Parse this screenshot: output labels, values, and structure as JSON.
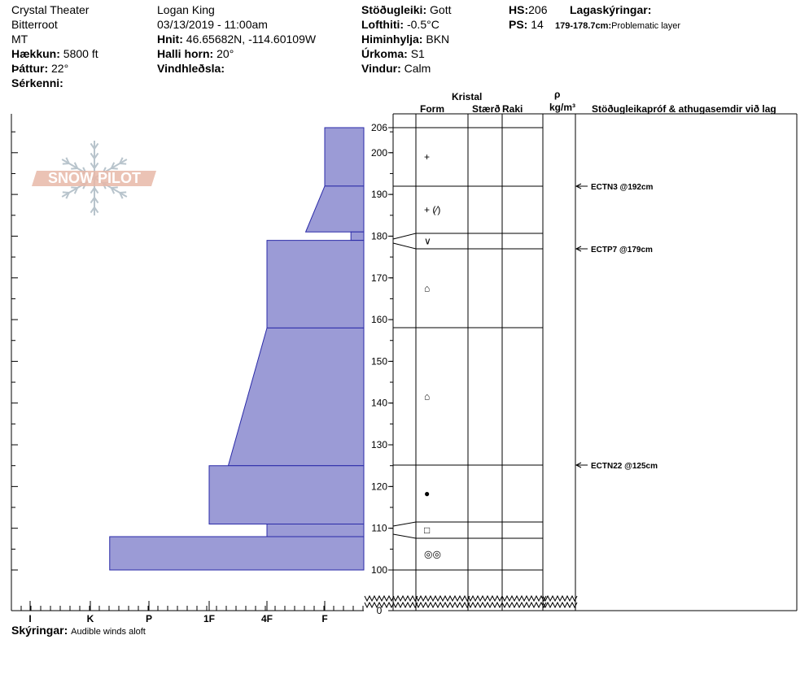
{
  "site": {
    "location": "Crystal Theater",
    "range": "Bitterroot",
    "state": "MT",
    "elevation_label": "Hækkun:",
    "elevation_value": "5800 ft",
    "aspect_label": "Þáttur:",
    "aspect_value": "22°",
    "features_label": "Sérkenni:",
    "features_value": ""
  },
  "observer": {
    "name": "Logan King",
    "datetime": "03/13/2019 - 11:00am",
    "coords_label": "Hnit:",
    "coords_value": "46.65682N, -114.60109W",
    "slope_label": "Halli horn:",
    "slope_value": "20°",
    "wind_loading_label": "Vindhleðsla:",
    "wind_loading_value": ""
  },
  "conditions": {
    "stability_label": "Stöðugleiki:",
    "stability_value": "Gott",
    "air_temp_label": "Lofthiti:",
    "air_temp_value": "-0.5°C",
    "sky_label": "Himinhylja:",
    "sky_value": "BKN",
    "precip_label": "Úrkoma:",
    "precip_value": "S1",
    "wind_label": "Vindur:",
    "wind_value": "Calm"
  },
  "depths": {
    "hs_label": "HS:",
    "hs_value": "206",
    "ps_label": "PS:",
    "ps_value": "14"
  },
  "legend": {
    "title": "Lagaskýringar:",
    "range": "179-178.7cm:",
    "text": "Problematic layer"
  },
  "columns": {
    "crystal": "Kristal",
    "form": "Form",
    "size": "Stærð",
    "moisture": "Raki",
    "rho": "ρ",
    "density_unit": "kg/m³",
    "tests": "Stöðugleikapróf & athugasemdir við lag"
  },
  "notes": {
    "label": "Skýringar:",
    "value": "Audible winds aloft"
  },
  "logo": {
    "text": "SNOW PILOT"
  },
  "colors": {
    "layer_fill": "#9b9bd6",
    "layer_stroke": "#2a2aa8",
    "logo": "#e8b8a8",
    "snowflake": "#b8c4cc"
  },
  "chart_data": {
    "type": "hardness-profile",
    "y_unit": "cm",
    "y_range": [
      0,
      206
    ],
    "y_ticks": [
      "0",
      "100",
      "110",
      "120",
      "130",
      "140",
      "150",
      "160",
      "170",
      "180",
      "190",
      "200",
      "206"
    ],
    "hardness_labels": [
      "I",
      "K",
      "P",
      "1F",
      "4F",
      "F"
    ],
    "layers": [
      {
        "top": 206,
        "bottom": 192,
        "hardness_top": 1,
        "hardness_bottom": 1,
        "form": "+"
      },
      {
        "top": 192,
        "bottom": 181,
        "hardness_top": 1,
        "hardness_bottom": 1.33,
        "form": "+ (⁄)"
      },
      {
        "top": 181,
        "bottom": 179,
        "hardness_top": 0.33,
        "hardness_bottom": 0.33,
        "form": "∨"
      },
      {
        "top": 179,
        "bottom": 158,
        "hardness_top": 2,
        "hardness_bottom": 2,
        "form": "⌂"
      },
      {
        "top": 158,
        "bottom": 125,
        "hardness_top": 2,
        "hardness_bottom": 2.67,
        "form": "⌂"
      },
      {
        "top": 125,
        "bottom": 111,
        "hardness_top": 3,
        "hardness_bottom": 3,
        "form": "●"
      },
      {
        "top": 111,
        "bottom": 108,
        "hardness_top": 2,
        "hardness_bottom": 2,
        "form": "□"
      },
      {
        "top": 108,
        "bottom": 100,
        "hardness_top": 4.67,
        "hardness_bottom": 4.67,
        "form": "◎◎"
      }
    ],
    "stability_tests": [
      {
        "depth": 192,
        "label": "ECTN3 @192cm"
      },
      {
        "depth": 179,
        "label": "ECTP7 @179cm"
      },
      {
        "depth": 125,
        "label": "ECTN22 @125cm"
      }
    ]
  }
}
